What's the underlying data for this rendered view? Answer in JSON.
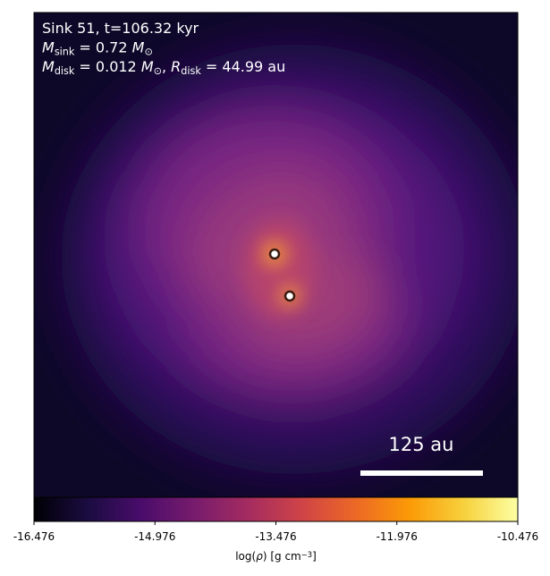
{
  "chart_data": {
    "type": "heatmap",
    "annotations": [
      [
        {
          "text": "Sink 51, t=106.32 kyr",
          "kind": "plain"
        }
      ],
      [
        {
          "text": "M",
          "kind": "italic"
        },
        {
          "text": "sink",
          "kind": "sub"
        },
        {
          "text": " = 0.72 ",
          "kind": "plain"
        },
        {
          "text": "M",
          "kind": "italic"
        },
        {
          "text": "⊙",
          "kind": "sub"
        }
      ],
      [
        {
          "text": "M",
          "kind": "italic"
        },
        {
          "text": "disk",
          "kind": "sub"
        },
        {
          "text": " = 0.012 ",
          "kind": "plain"
        },
        {
          "text": "M",
          "kind": "italic"
        },
        {
          "text": "⊙",
          "kind": "sub"
        },
        {
          "text": ", ",
          "kind": "plain"
        },
        {
          "text": "R",
          "kind": "italic"
        },
        {
          "text": "disk",
          "kind": "sub"
        },
        {
          "text": " = 44.99 au",
          "kind": "plain"
        }
      ]
    ],
    "scale_bar": "125 au",
    "colorbar": {
      "colormap": "inferno",
      "clim": [
        -16.476,
        -10.476
      ],
      "ticks": [
        -16.476,
        -14.976,
        -13.476,
        -11.976,
        -10.476
      ],
      "label": [
        {
          "text": "log(",
          "kind": "plain"
        },
        {
          "text": "ρ",
          "kind": "italic"
        },
        {
          "text": ") [g cm",
          "kind": "plain"
        },
        {
          "text": "−3",
          "kind": "sup"
        },
        {
          "text": "]",
          "kind": "plain"
        }
      ]
    }
  }
}
